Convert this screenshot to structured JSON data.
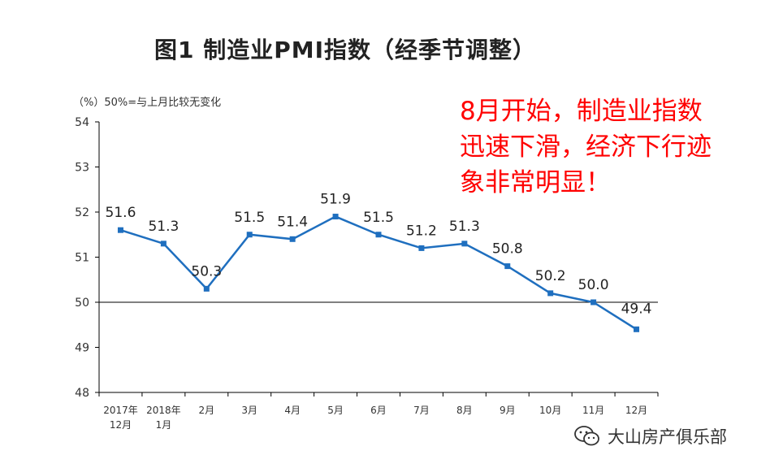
{
  "title": "图1 制造业PMI指数（经季节调整）",
  "y_note": "（%）50%=与上月比较无变化",
  "annotation": {
    "lines": [
      "8月开始，制造业指数",
      "迅速下滑，经济下行迹",
      "象非常明显！"
    ]
  },
  "watermark": {
    "text": "大山房产俱乐部",
    "icon": "wechat-icon"
  },
  "colors": {
    "line": "#1f6fbf",
    "highlight": "#ff0000",
    "axis": "#000000",
    "text": "#333333"
  },
  "chart_data": {
    "type": "line",
    "categories": [
      [
        "2017年",
        "12月"
      ],
      [
        "2018年",
        "1月"
      ],
      [
        "2月"
      ],
      [
        "3月"
      ],
      [
        "4月"
      ],
      [
        "5月"
      ],
      [
        "6月"
      ],
      [
        "7月"
      ],
      [
        "8月"
      ],
      [
        "9月"
      ],
      [
        "10月"
      ],
      [
        "11月"
      ],
      [
        "12月"
      ]
    ],
    "values": [
      51.6,
      51.3,
      50.3,
      51.5,
      51.4,
      51.9,
      51.5,
      51.2,
      51.3,
      50.8,
      50.2,
      50.0,
      49.4
    ],
    "data_labels": [
      "51.6",
      "51.3",
      "50.3",
      "51.5",
      "51.4",
      "51.9",
      "51.5",
      "51.2",
      "51.3",
      "50.8",
      "50.2",
      "50.0",
      "49.4"
    ],
    "yticks": [
      "48",
      "49",
      "50",
      "51",
      "52",
      "53",
      "54"
    ],
    "ylim": [
      48,
      54
    ],
    "reference_line": 50,
    "highlight_range": [
      "8月",
      "12月"
    ],
    "grid": false
  }
}
